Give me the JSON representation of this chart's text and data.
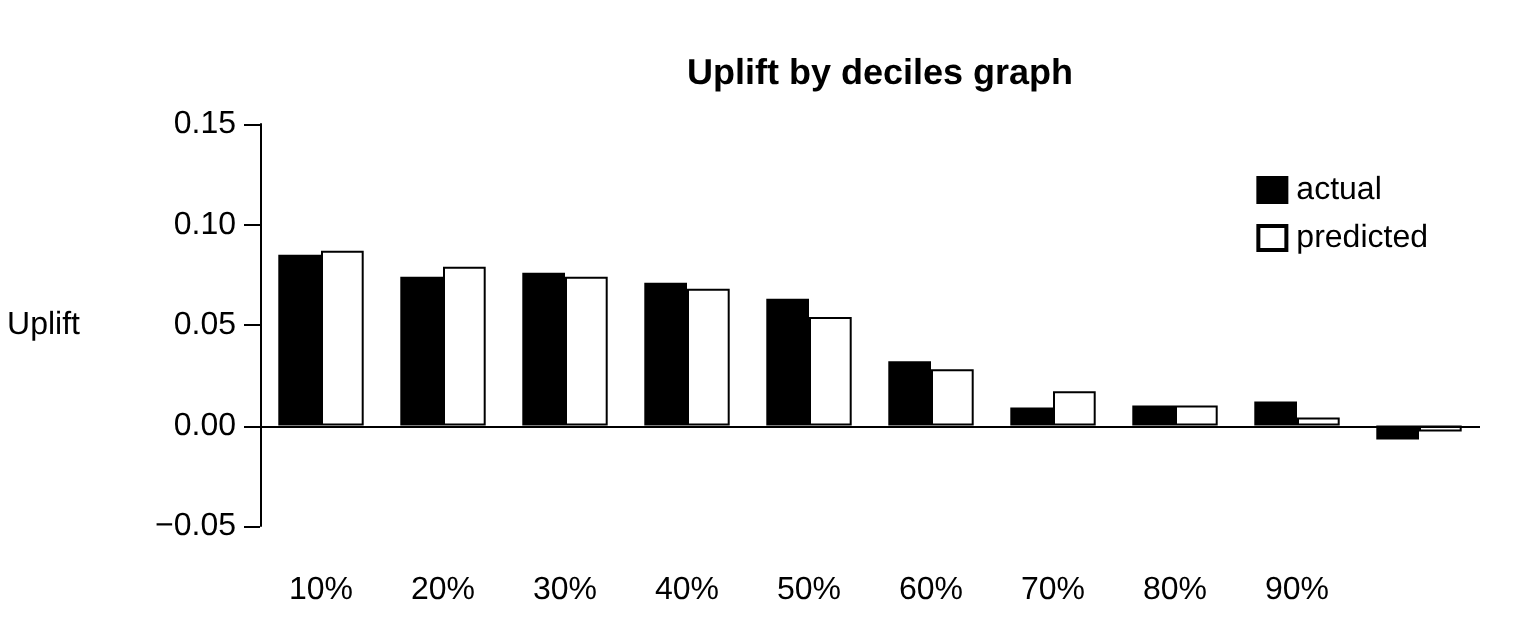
{
  "chart_data": {
    "type": "bar",
    "title": "Uplift by deciles graph",
    "ylabel": "Uplift",
    "categories": [
      "10%",
      "20%",
      "30%",
      "40%",
      "50%",
      "60%",
      "70%",
      "80%",
      "90%",
      null
    ],
    "series": [
      {
        "name": "actual",
        "color": "#000000",
        "values": [
          0.085,
          0.074,
          0.076,
          0.071,
          0.063,
          0.032,
          0.009,
          0.01,
          0.012,
          -0.007
        ]
      },
      {
        "name": "predicted",
        "color": "#ffffff",
        "values": [
          0.087,
          0.079,
          0.074,
          0.068,
          0.054,
          0.028,
          0.017,
          0.01,
          0.004,
          -0.003
        ]
      }
    ],
    "ylim": [
      -0.05,
      0.15
    ],
    "yticks": [
      {
        "value": -0.05,
        "label": "−0.05"
      },
      {
        "value": 0,
        "label": "0.00"
      },
      {
        "value": 0.05,
        "label": "0.05"
      },
      {
        "value": 0.1,
        "label": "0.10"
      },
      {
        "value": 0.15,
        "label": "0.15"
      }
    ],
    "ref_lines": [
      {
        "axis": "y",
        "value": 0,
        "label": null,
        "color": "#000000"
      }
    ],
    "legend": "top right",
    "grid": false
  }
}
